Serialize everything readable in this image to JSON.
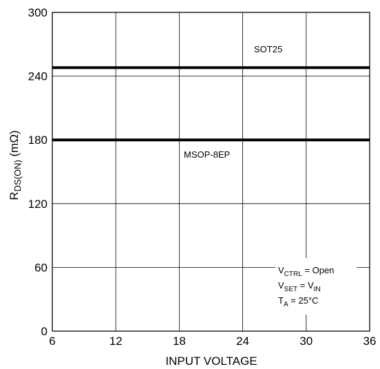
{
  "chart_data": {
    "type": "line",
    "xlabel": "INPUT VOLTAGE",
    "ylabel": {
      "main": "R",
      "sub": "DS(ON)",
      "unit": " (mΩ)"
    },
    "xlim": [
      6,
      36
    ],
    "ylim": [
      0,
      300
    ],
    "x_ticks": [
      6,
      12,
      18,
      24,
      30,
      36
    ],
    "y_ticks": [
      0,
      60,
      120,
      180,
      240,
      300
    ],
    "grid": true,
    "series": [
      {
        "name": "SOT25",
        "x": [
          6,
          36
        ],
        "y": [
          248,
          248
        ]
      },
      {
        "name": "MSOP-8EP",
        "x": [
          6,
          36
        ],
        "y": [
          180,
          180
        ]
      }
    ],
    "conditions": [
      {
        "main": "V",
        "sub": "CTRL",
        "rest": " = Open"
      },
      {
        "main": "V",
        "sub": "SET",
        "rest": " = V",
        "sub2": "IN"
      },
      {
        "main": "T",
        "sub": "A",
        "rest": " = 25°C"
      }
    ]
  }
}
